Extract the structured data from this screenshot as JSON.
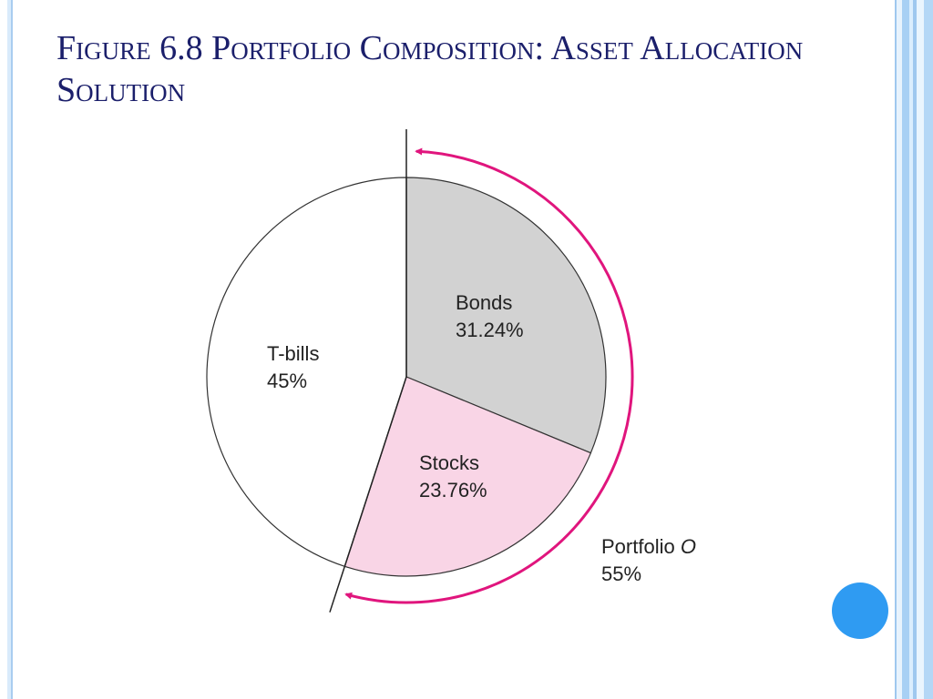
{
  "slide": {
    "title": "Figure 6.8 Portfolio Composition: Asset Allocation Solution"
  },
  "colors": {
    "title": "#1b1f6b",
    "bonds": "#d2d2d2",
    "stocks": "#f9d5e6",
    "tbills": "#ffffff",
    "arrow": "#e0157d",
    "accent_dot": "#2f9bf2"
  },
  "chart_data": {
    "type": "pie",
    "title": "",
    "slices": [
      {
        "name": "Bonds",
        "value": 31.24,
        "label": "Bonds",
        "value_label": "31.24%"
      },
      {
        "name": "Stocks",
        "value": 23.76,
        "label": "Stocks",
        "value_label": "23.76%"
      },
      {
        "name": "T-bills",
        "value": 45,
        "label": "T-bills",
        "value_label": "45%"
      }
    ],
    "annotation": {
      "label_text": "Portfolio ",
      "label_italic": "O",
      "value_label": "55%",
      "spans": [
        "Bonds",
        "Stocks"
      ]
    }
  }
}
